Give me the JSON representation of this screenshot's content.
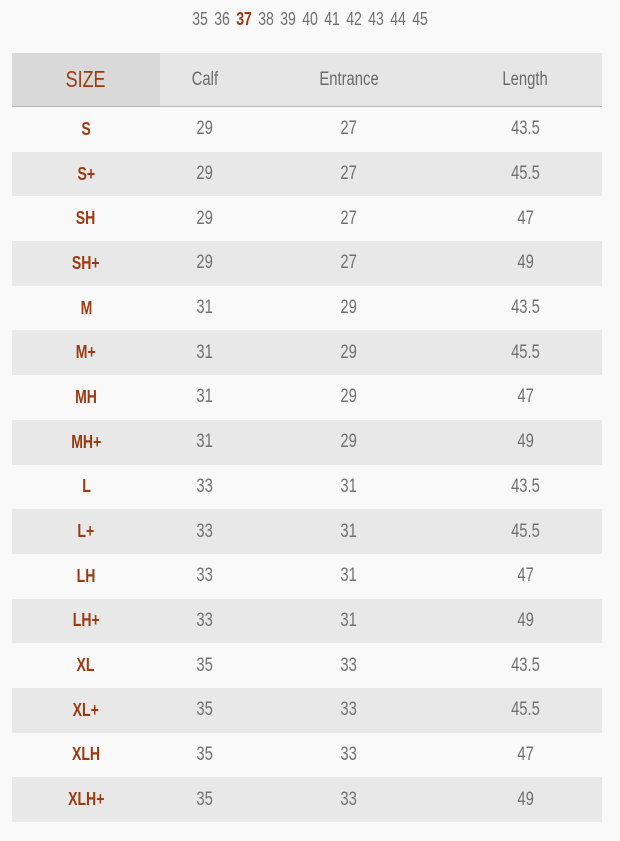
{
  "size_selector": {
    "sizes": [
      "35",
      "36",
      "37",
      "38",
      "39",
      "40",
      "41",
      "42",
      "43",
      "44",
      "45"
    ],
    "selected": "37"
  },
  "table": {
    "headers": [
      "SIZE",
      "Calf",
      "Entrance",
      "Length"
    ],
    "rows": [
      [
        "S",
        "29",
        "27",
        "43.5"
      ],
      [
        "S+",
        "29",
        "27",
        "45.5"
      ],
      [
        "SH",
        "29",
        "27",
        "47"
      ],
      [
        "SH+",
        "29",
        "27",
        "49"
      ],
      [
        "M",
        "31",
        "29",
        "43.5"
      ],
      [
        "M+",
        "31",
        "29",
        "45.5"
      ],
      [
        "MH",
        "31",
        "29",
        "47"
      ],
      [
        "MH+",
        "31",
        "29",
        "49"
      ],
      [
        "L",
        "33",
        "31",
        "43.5"
      ],
      [
        "L+",
        "33",
        "31",
        "45.5"
      ],
      [
        "LH",
        "33",
        "31",
        "47"
      ],
      [
        "LH+",
        "33",
        "31",
        "49"
      ],
      [
        "XL",
        "35",
        "33",
        "43.5"
      ],
      [
        "XL+",
        "35",
        "33",
        "45.5"
      ],
      [
        "XLH",
        "35",
        "33",
        "47"
      ],
      [
        "XLH+",
        "35",
        "33",
        "49"
      ]
    ]
  },
  "colors": {
    "accent": "#9b3a10",
    "text": "#707070"
  }
}
